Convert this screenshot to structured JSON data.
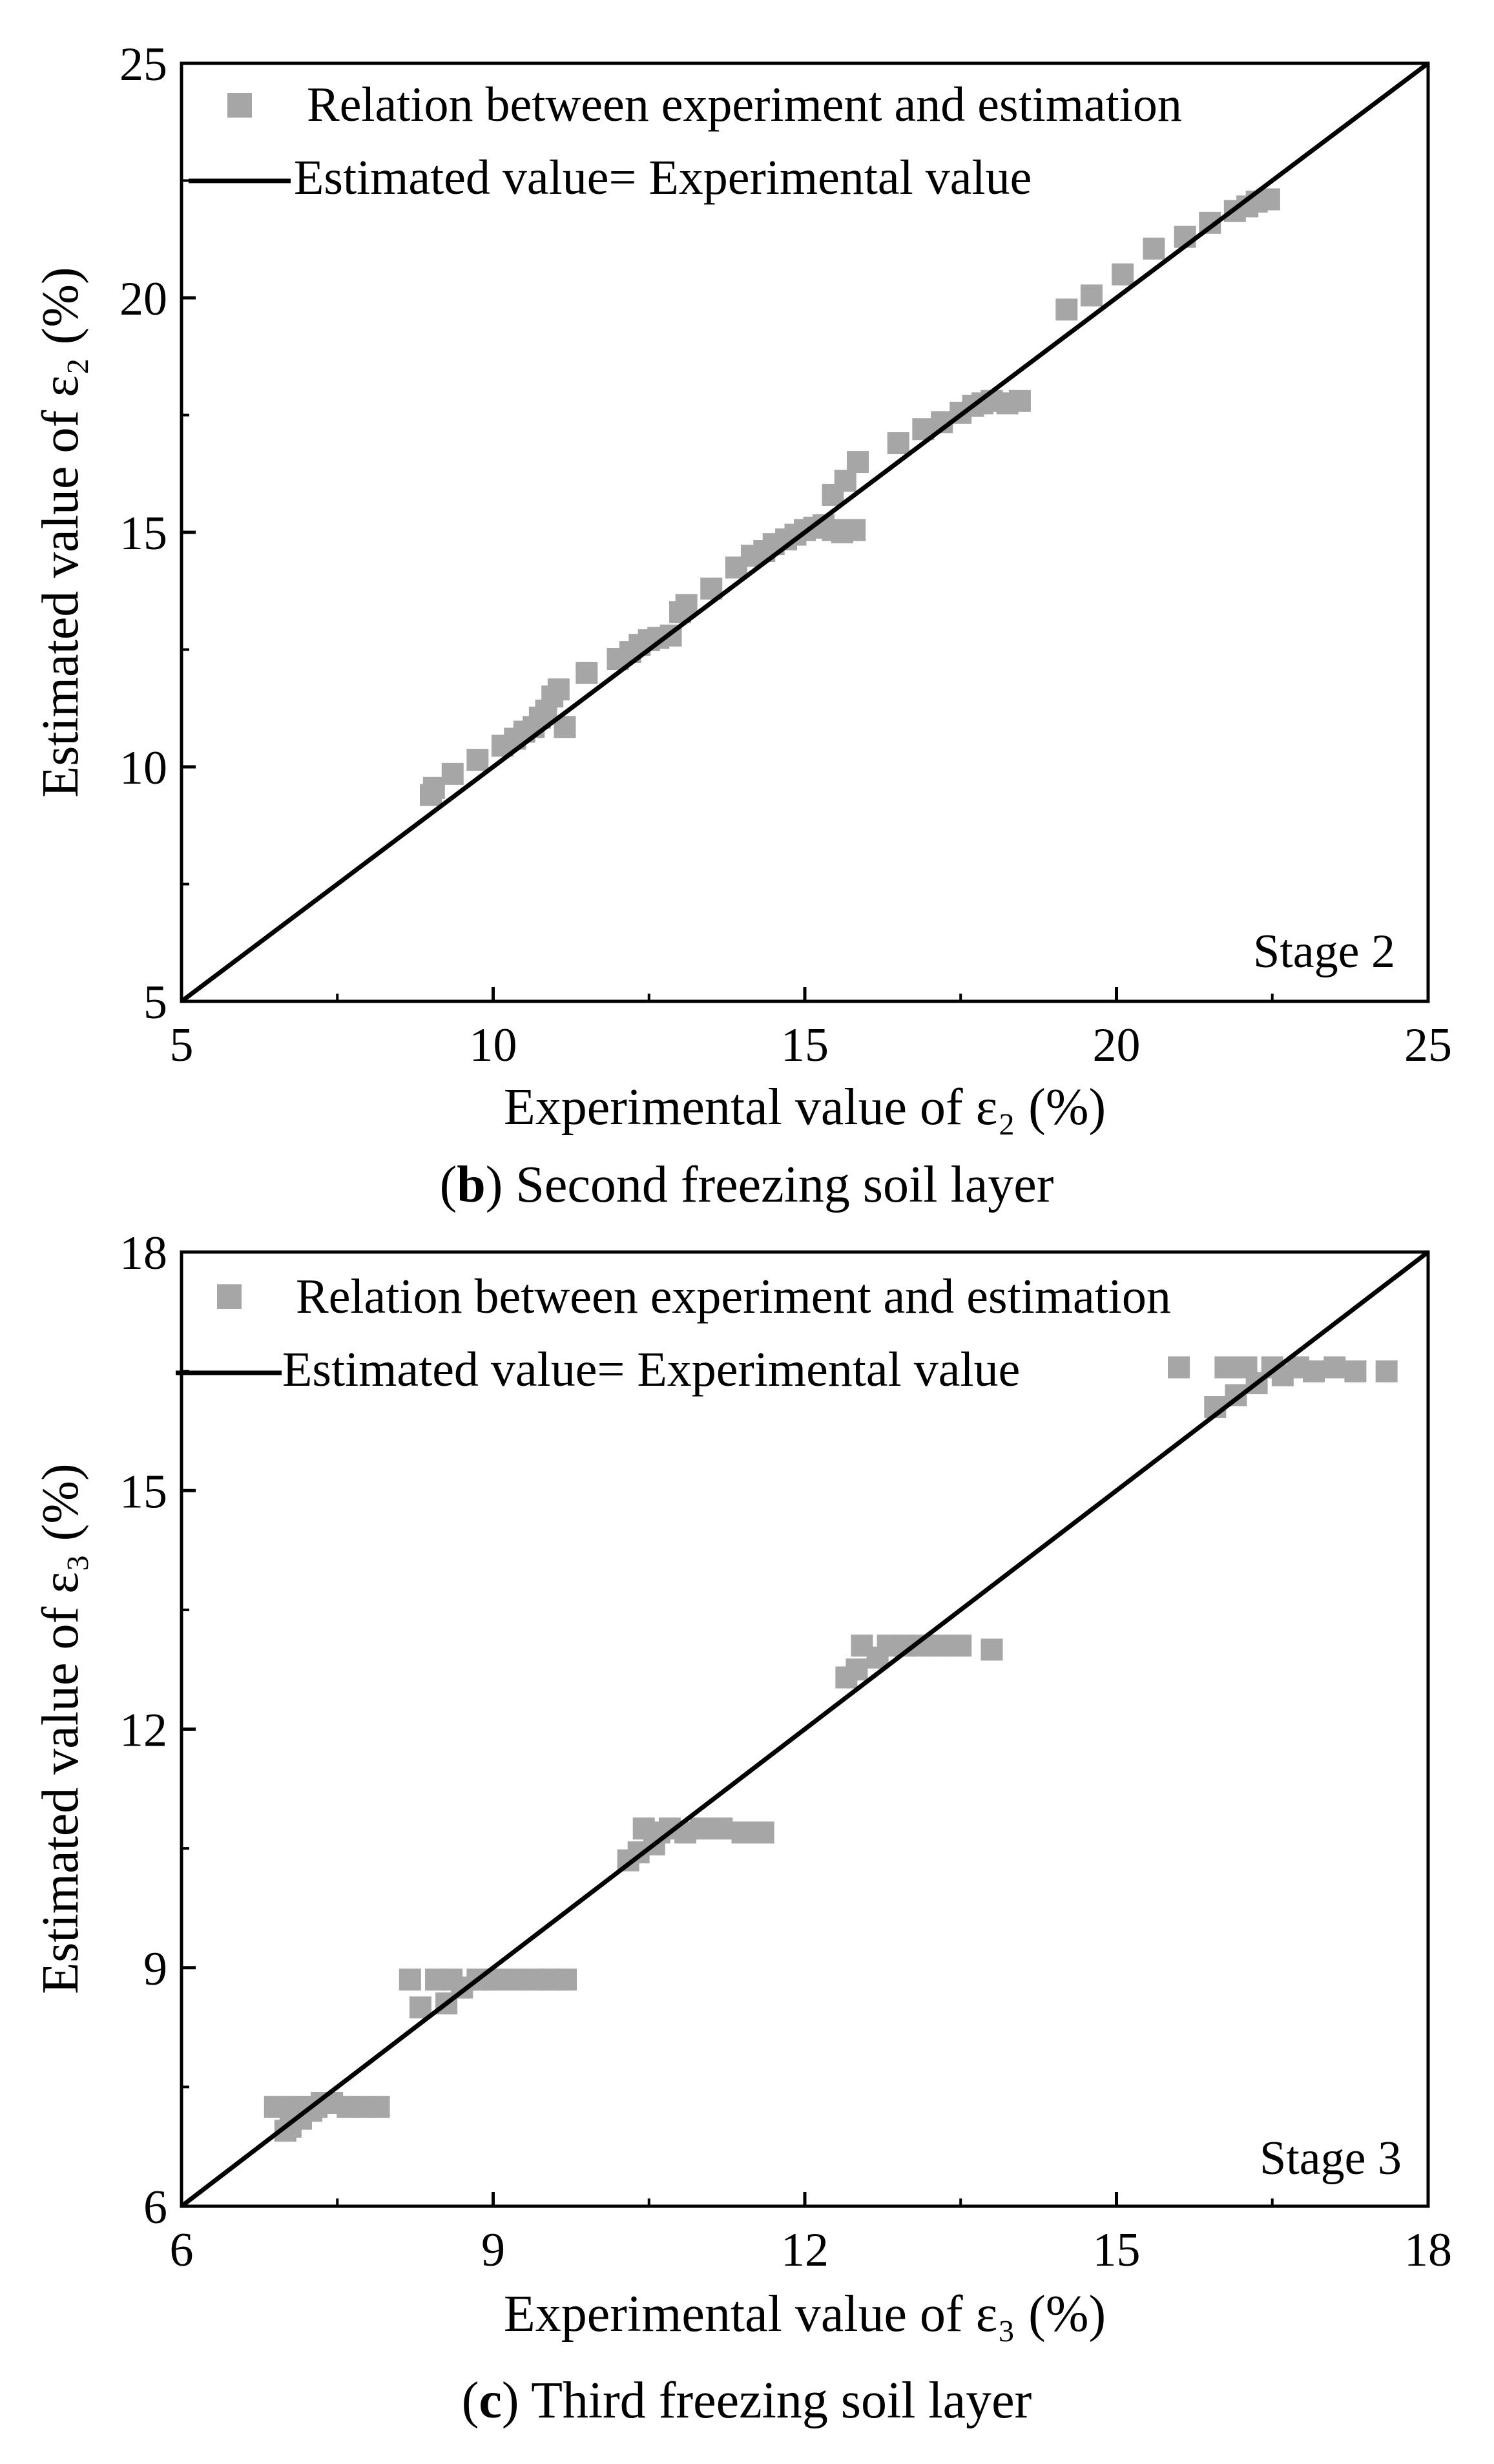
{
  "chart_data": [
    {
      "type": "scatter",
      "panel_label": "b",
      "caption": "Second freezing soil layer",
      "stage_label": "Stage 2",
      "xlabel": "Experimental value of ε₂ (%)",
      "ylabel": "Estimated value of ε₂ (%)",
      "xlim": [
        5,
        25
      ],
      "ylim": [
        5,
        25
      ],
      "xticks": [
        "5",
        "10",
        "15",
        "20",
        "25"
      ],
      "yticks": [
        "5",
        "10",
        "15",
        "20",
        "25"
      ],
      "legend": {
        "position": "top-left",
        "scatter_label": "Relation between experiment and estimation",
        "line_label": "Estimated value= Experimental value"
      },
      "colors": {
        "marker": "#a6a6a6",
        "line": "#000000"
      },
      "reference_line": {
        "x": [
          5,
          25
        ],
        "y": [
          5,
          25
        ]
      },
      "series": [
        {
          "name": "Relation between experiment and estimation",
          "x": [
            9.0,
            9.05,
            9.35,
            9.75,
            10.15,
            10.35,
            10.5,
            10.65,
            10.75,
            10.85,
            10.95,
            11.05,
            11.15,
            11.5,
            12.0,
            12.2,
            12.35,
            12.5,
            12.65,
            12.85,
            13.0,
            13.1,
            13.5,
            13.9,
            14.15,
            14.35,
            14.5,
            14.7,
            14.85,
            15.0,
            15.15,
            15.3,
            15.45,
            15.6,
            15.8,
            15.45,
            15.65,
            15.85,
            16.5,
            16.9,
            17.2,
            17.5,
            17.7,
            17.85,
            18.0,
            18.25,
            18.45,
            19.2,
            19.6,
            20.1,
            20.6,
            21.1,
            21.5,
            21.9,
            22.1,
            22.25,
            22.45
          ],
          "y": [
            9.4,
            9.55,
            9.85,
            10.15,
            10.45,
            10.6,
            10.75,
            10.85,
            11.05,
            11.2,
            11.5,
            11.65,
            10.85,
            12.0,
            12.3,
            12.45,
            12.6,
            12.7,
            12.75,
            12.8,
            13.3,
            13.45,
            13.8,
            14.25,
            14.5,
            14.6,
            14.75,
            14.85,
            14.95,
            15.05,
            15.1,
            15.15,
            15.05,
            15.0,
            15.05,
            15.8,
            16.1,
            16.5,
            16.9,
            17.2,
            17.35,
            17.55,
            17.7,
            17.75,
            17.8,
            17.75,
            17.8,
            19.75,
            20.05,
            20.5,
            21.05,
            21.3,
            21.6,
            21.85,
            21.95,
            22.05,
            22.1
          ]
        }
      ]
    },
    {
      "type": "scatter",
      "panel_label": "c",
      "caption": "Third freezing soil layer",
      "stage_label": "Stage 3",
      "xlabel": "Experimental value of ε₃ (%)",
      "ylabel": "Estimated value of ε₃ (%)",
      "xlim": [
        6,
        18
      ],
      "ylim": [
        6,
        18
      ],
      "xticks": [
        "6",
        "9",
        "12",
        "15",
        "18"
      ],
      "yticks": [
        "6",
        "9",
        "12",
        "15",
        "18"
      ],
      "legend": {
        "position": "top-left",
        "scatter_label": "Relation between experiment and estimation",
        "line_label": "Estimated value= Experimental value"
      },
      "colors": {
        "marker": "#a6a6a6",
        "line": "#000000"
      },
      "reference_line": {
        "x": [
          6,
          18
        ],
        "y": [
          6,
          18
        ]
      },
      "series": [
        {
          "name": "Relation between experiment and estimation",
          "x": [
            6.9,
            7.0,
            7.05,
            7.1,
            7.15,
            7.2,
            7.25,
            7.3,
            7.35,
            7.45,
            7.6,
            7.75,
            7.9,
            8.2,
            8.3,
            8.45,
            8.55,
            8.6,
            8.7,
            8.85,
            9.0,
            9.2,
            9.4,
            9.55,
            9.7,
            10.3,
            10.4,
            10.45,
            10.55,
            10.6,
            10.7,
            10.85,
            11.0,
            11.2,
            11.4,
            11.6,
            12.4,
            12.5,
            12.55,
            12.7,
            12.8,
            12.95,
            13.1,
            13.3,
            13.5,
            13.8,
            15.6,
            15.95,
            16.05,
            16.15,
            16.25,
            16.35,
            16.5,
            16.6,
            16.75,
            16.9,
            17.1,
            17.3,
            17.6
          ],
          "y": [
            7.25,
            6.95,
            7.0,
            7.25,
            7.1,
            7.25,
            7.2,
            7.25,
            7.3,
            7.3,
            7.25,
            7.25,
            7.25,
            8.85,
            8.5,
            8.85,
            8.55,
            8.85,
            8.75,
            8.85,
            8.85,
            8.85,
            8.85,
            8.85,
            8.85,
            10.35,
            10.45,
            10.75,
            10.55,
            10.7,
            10.75,
            10.7,
            10.75,
            10.75,
            10.7,
            10.7,
            12.65,
            12.75,
            13.05,
            12.9,
            13.05,
            13.05,
            13.05,
            13.05,
            13.05,
            13.0,
            16.55,
            16.05,
            16.55,
            16.2,
            16.55,
            16.35,
            16.55,
            16.45,
            16.55,
            16.5,
            16.55,
            16.5,
            16.5
          ]
        }
      ]
    }
  ]
}
